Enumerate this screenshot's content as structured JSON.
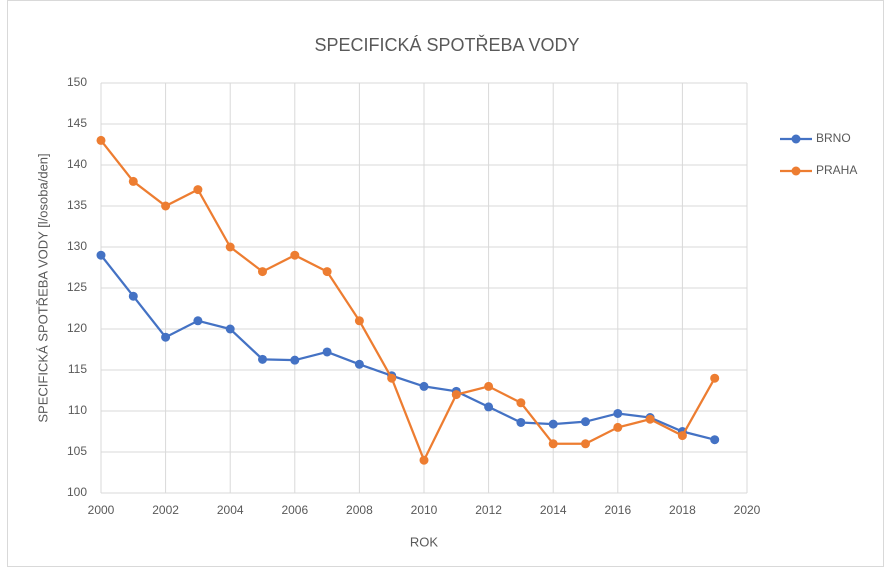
{
  "chart_data": {
    "type": "line",
    "title": "SPECIFICKÁ SPOTŘEBA VODY",
    "x_label": "ROK",
    "y_label": "SPECIFICKÁ SPOTŘEBA VODY [l/osoba/den]",
    "x": [
      2000,
      2001,
      2002,
      2003,
      2004,
      2005,
      2006,
      2007,
      2008,
      2009,
      2010,
      2011,
      2012,
      2013,
      2014,
      2015,
      2016,
      2017,
      2018,
      2019
    ],
    "series": [
      {
        "name": "BRNO",
        "color": "#4472c4",
        "values": [
          129,
          124,
          119,
          121,
          120,
          116.3,
          116.2,
          117.2,
          115.7,
          114.3,
          113,
          112.4,
          110.5,
          108.6,
          108.4,
          108.7,
          109.7,
          109.2,
          107.5,
          106.5
        ]
      },
      {
        "name": "PRAHA",
        "color": "#ed7d31",
        "values": [
          143,
          138,
          135,
          137,
          130,
          127,
          129,
          127,
          121,
          114,
          104,
          112,
          113,
          111,
          106,
          106,
          108,
          109,
          107,
          114
        ]
      }
    ],
    "xlim": [
      2000,
      2020
    ],
    "xticks": [
      2000,
      2002,
      2004,
      2006,
      2008,
      2010,
      2012,
      2014,
      2016,
      2018,
      2020
    ],
    "ylim": [
      100,
      150
    ],
    "yticks": [
      100,
      105,
      110,
      115,
      120,
      125,
      130,
      135,
      140,
      145,
      150
    ],
    "grid": true,
    "legend": "right"
  }
}
